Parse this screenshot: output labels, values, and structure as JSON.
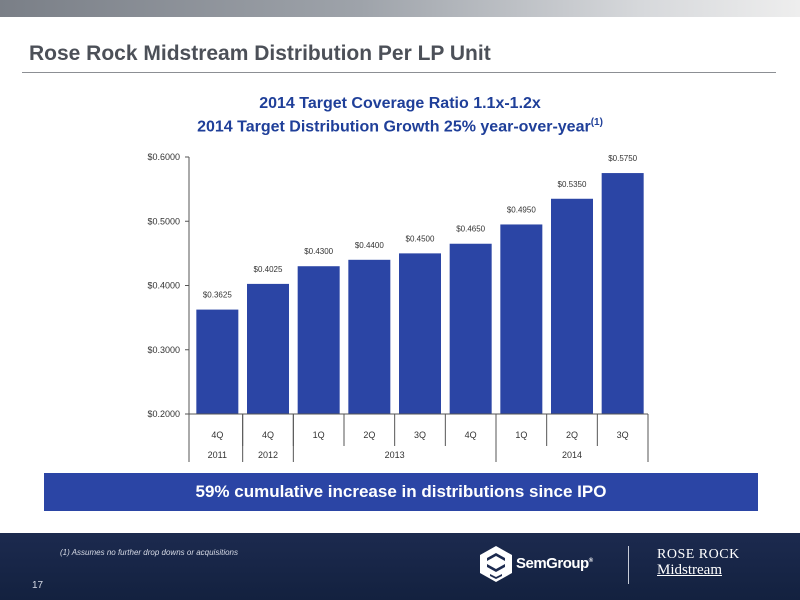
{
  "header": {
    "title": "Rose Rock Midstream Distribution Per LP Unit"
  },
  "chart_data": {
    "type": "bar",
    "title": "2014 Target Coverage Ratio 1.1x-1.2x",
    "subtitle": "2014 Target Distribution Growth 25% year-over-year",
    "subtitle_superscript": "(1)",
    "categories": [
      "4Q",
      "4Q",
      "1Q",
      "2Q",
      "3Q",
      "4Q",
      "1Q",
      "2Q",
      "3Q"
    ],
    "groups": [
      {
        "label": "2011",
        "count": 1
      },
      {
        "label": "2012",
        "count": 1
      },
      {
        "label": "2013",
        "count": 4
      },
      {
        "label": "2014",
        "count": 3
      }
    ],
    "values": [
      0.3625,
      0.4025,
      0.43,
      0.44,
      0.45,
      0.465,
      0.495,
      0.535,
      0.575
    ],
    "value_labels": [
      "$0.3625",
      "$0.4025",
      "$0.4300",
      "$0.4400",
      "$0.4500",
      "$0.4650",
      "$0.4950",
      "$0.5350",
      "$0.5750"
    ],
    "ylim": [
      0.2,
      0.6
    ],
    "yticks": [
      0.2,
      0.3,
      0.4,
      0.5,
      0.6
    ],
    "ytick_labels": [
      "$0.2000",
      "$0.3000",
      "$0.4000",
      "$0.5000",
      "$0.6000"
    ],
    "bar_color": "#2b45a5",
    "grid": false,
    "xlabel": "",
    "ylabel": ""
  },
  "banner": {
    "text": "59% cumulative increase in distributions since IPO"
  },
  "footer": {
    "footnote": "(1) Assumes no further drop downs or acquisitions",
    "page_number": "17",
    "semgroup_logo_text": "SemGroup",
    "semgroup_logo_mark": "®",
    "roserock_logo_line1": "ROSE ROCK",
    "roserock_logo_line2": "Midstream"
  },
  "colors": {
    "accent": "#2b45a5",
    "title": "#1f3f99",
    "footer_bg": "#1c2a4f"
  }
}
